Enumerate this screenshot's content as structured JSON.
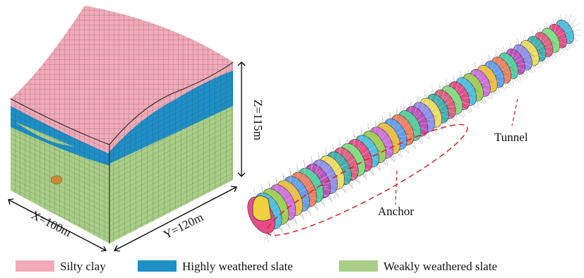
{
  "labels": {
    "z_dim": "Z=115m",
    "x_dim": "X=100m",
    "y_dim": "Y=120m",
    "tunnel": "Tunnel",
    "anchor": "Anchor"
  },
  "legend": [
    {
      "label": "Silty clay"
    },
    {
      "label": "Highly weathered slate"
    },
    {
      "label": "Weakly weathered slate"
    }
  ]
}
